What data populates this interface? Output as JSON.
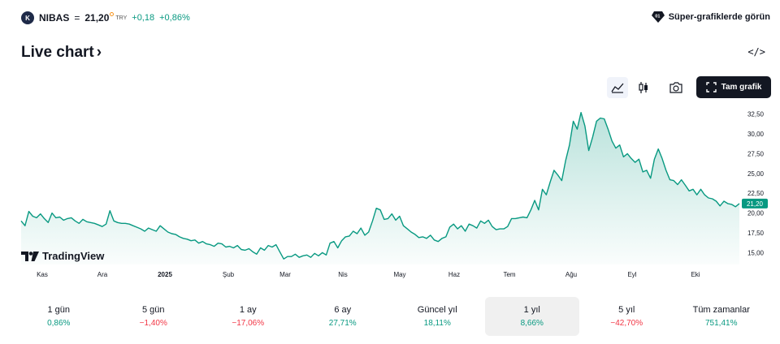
{
  "header": {
    "logo_text": "K",
    "symbol": "NIBAS",
    "separator": "=",
    "price": "21,20",
    "currency": "TRY",
    "change_abs": "+0,18",
    "change_pct": "+0,86%",
    "super_label": "Süper-grafiklerde görün",
    "super_icon": "supercharts-gem-icon"
  },
  "title": {
    "label": "Live chart",
    "chevron": "›"
  },
  "embed_label": "</>",
  "toolbar": {
    "buttons": [
      {
        "name": "area-chart-icon",
        "active": true
      },
      {
        "name": "candles-chart-icon",
        "active": false
      },
      {
        "name": "camera-icon",
        "active": false
      }
    ],
    "full_label": "Tam grafik"
  },
  "brand": {
    "logo_name": "tradingview-logo-icon",
    "label": "TradingView"
  },
  "chart_data": {
    "type": "area",
    "x_labels": [
      "Kas",
      "Ara",
      "2025",
      "Şub",
      "Mar",
      "Nis",
      "May",
      "Haz",
      "Tem",
      "Ağu",
      "Eyl",
      "Eki"
    ],
    "y_ticks": [
      "32,50",
      "30,00",
      "27,50",
      "25,00",
      "22,50",
      "20,00",
      "17,50",
      "15,00"
    ],
    "y_tick_values": [
      32.5,
      30,
      27.5,
      25,
      22.5,
      20,
      17.5,
      15
    ],
    "ylim": [
      13.5,
      34.0
    ],
    "last_value_label": "21,20",
    "last_value": 21.2,
    "values": [
      19.0,
      18.4,
      20.2,
      19.6,
      19.4,
      19.9,
      19.3,
      18.8,
      20.0,
      19.4,
      19.5,
      19.1,
      19.3,
      19.4,
      19.0,
      18.7,
      19.2,
      18.9,
      18.8,
      18.7,
      18.5,
      18.3,
      18.6,
      20.3,
      19.0,
      18.8,
      18.7,
      18.7,
      18.6,
      18.4,
      18.2,
      18.0,
      17.7,
      18.1,
      17.9,
      17.7,
      18.4,
      18.0,
      17.6,
      17.4,
      17.3,
      17.0,
      16.8,
      16.7,
      16.5,
      16.6,
      16.2,
      16.4,
      16.1,
      16.0,
      15.8,
      16.2,
      16.1,
      15.7,
      15.8,
      15.6,
      15.9,
      15.4,
      15.3,
      15.5,
      15.1,
      14.8,
      15.6,
      15.3,
      15.9,
      15.7,
      16.0,
      15.1,
      14.2,
      14.5,
      14.5,
      14.8,
      14.4,
      14.6,
      14.7,
      14.4,
      14.9,
      14.6,
      15.0,
      14.7,
      16.2,
      16.4,
      15.6,
      16.5,
      17.0,
      17.1,
      17.7,
      17.4,
      18.1,
      17.2,
      17.6,
      19.0,
      20.6,
      20.4,
      19.2,
      19.3,
      19.9,
      19.1,
      19.6,
      18.4,
      18.0,
      17.6,
      17.3,
      16.9,
      17.0,
      16.8,
      17.2,
      16.6,
      16.4,
      16.8,
      17.0,
      18.2,
      18.6,
      18.0,
      18.4,
      17.7,
      18.6,
      18.4,
      18.1,
      19.0,
      18.7,
      19.1,
      18.3,
      17.9,
      18.0,
      18.0,
      18.3,
      19.3,
      19.3,
      19.4,
      19.5,
      19.4,
      20.4,
      21.6,
      20.4,
      23.0,
      22.3,
      23.9,
      25.4,
      24.8,
      24.1,
      26.6,
      28.6,
      31.6,
      30.6,
      32.7,
      31.0,
      27.9,
      29.6,
      31.6,
      32.0,
      31.9,
      30.6,
      29.1,
      28.2,
      28.6,
      27.1,
      27.5,
      26.9,
      26.4,
      26.8,
      25.2,
      25.4,
      24.4,
      26.8,
      28.1,
      26.9,
      25.4,
      24.2,
      24.1,
      23.6,
      24.2,
      23.5,
      22.8,
      23.0,
      22.3,
      23.0,
      22.3,
      21.9,
      21.8,
      21.5,
      20.9,
      21.5,
      21.2,
      21.1,
      20.8,
      21.2
    ]
  },
  "periods": [
    {
      "label": "1 gün",
      "value": "0,86%",
      "dir": "pos",
      "active": false
    },
    {
      "label": "5 gün",
      "value": "−1,40%",
      "dir": "neg",
      "active": false
    },
    {
      "label": "1 ay",
      "value": "−17,06%",
      "dir": "neg",
      "active": false
    },
    {
      "label": "6 ay",
      "value": "27,71%",
      "dir": "pos",
      "active": false
    },
    {
      "label": "Güncel yıl",
      "value": "18,11%",
      "dir": "pos",
      "active": false
    },
    {
      "label": "1 yıl",
      "value": "8,66%",
      "dir": "pos",
      "active": true
    },
    {
      "label": "5 yıl",
      "value": "−42,70%",
      "dir": "neg",
      "active": false
    },
    {
      "label": "Tüm zamanlar",
      "value": "751,41%",
      "dir": "pos",
      "active": false
    }
  ],
  "colors": {
    "line": "#089981",
    "positive": "#089981",
    "negative": "#f23645",
    "label_bg": "#089981"
  }
}
